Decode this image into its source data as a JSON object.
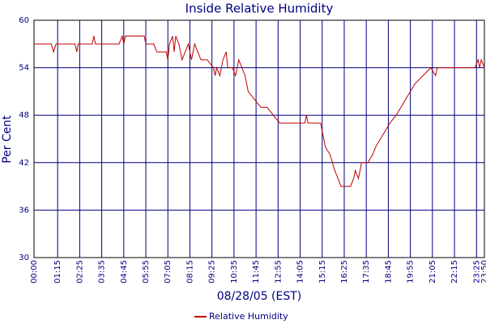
{
  "chart_data": {
    "type": "line",
    "title": "Inside Relative Humidity",
    "x_label": "08/28/05 (EST)",
    "y_label": "Per Cent",
    "xlim": [
      0,
      1430
    ],
    "ylim": [
      30,
      60
    ],
    "xticks": [
      {
        "value": 0,
        "label": "00:00"
      },
      {
        "value": 75,
        "label": "01:15"
      },
      {
        "value": 145,
        "label": "02:25"
      },
      {
        "value": 215,
        "label": "03:35"
      },
      {
        "value": 285,
        "label": "04:45"
      },
      {
        "value": 355,
        "label": "05:55"
      },
      {
        "value": 425,
        "label": "07:05"
      },
      {
        "value": 495,
        "label": "08:15"
      },
      {
        "value": 565,
        "label": "09:25"
      },
      {
        "value": 635,
        "label": "10:35"
      },
      {
        "value": 705,
        "label": "11:45"
      },
      {
        "value": 775,
        "label": "12:55"
      },
      {
        "value": 845,
        "label": "14:05"
      },
      {
        "value": 915,
        "label": "15:15"
      },
      {
        "value": 985,
        "label": "16:25"
      },
      {
        "value": 1055,
        "label": "17:35"
      },
      {
        "value": 1125,
        "label": "18:45"
      },
      {
        "value": 1195,
        "label": "19:55"
      },
      {
        "value": 1265,
        "label": "21:05"
      },
      {
        "value": 1335,
        "label": "22:15"
      },
      {
        "value": 1405,
        "label": "23:25"
      },
      {
        "value": 1430,
        "label": "23:50"
      }
    ],
    "yticks": [
      30,
      36,
      42,
      48,
      54,
      60
    ],
    "grid": true,
    "x": [
      0,
      40,
      55,
      62,
      70,
      130,
      136,
      140,
      185,
      190,
      195,
      270,
      280,
      285,
      290,
      300,
      350,
      355,
      380,
      390,
      420,
      425,
      430,
      440,
      445,
      450,
      460,
      470,
      480,
      490,
      500,
      510,
      520,
      530,
      550,
      570,
      575,
      580,
      590,
      600,
      610,
      615,
      630,
      640,
      650,
      660,
      670,
      680,
      700,
      720,
      740,
      760,
      780,
      820,
      860,
      865,
      870,
      910,
      915,
      925,
      940,
      955,
      965,
      975,
      1005,
      1015,
      1020,
      1030,
      1040,
      1060,
      1075,
      1085,
      1100,
      1115,
      1130,
      1150,
      1165,
      1180,
      1195,
      1210,
      1235,
      1260,
      1275,
      1280,
      1320,
      1360,
      1400,
      1410,
      1415,
      1420,
      1430
    ],
    "series": [
      {
        "name": "Relative Humidity",
        "color": "#c00000",
        "values": [
          57,
          57,
          57,
          56,
          57,
          57,
          56,
          57,
          57,
          58,
          57,
          57,
          58,
          57,
          58,
          58,
          58,
          57,
          57,
          56,
          56,
          55,
          57,
          58,
          56,
          58,
          57,
          55,
          56,
          57,
          55,
          57,
          56,
          55,
          55,
          54,
          53,
          54,
          53,
          55,
          56,
          54,
          54,
          53,
          55,
          54,
          53,
          51,
          50,
          49,
          49,
          48,
          47,
          47,
          47,
          48,
          47,
          47,
          46,
          44,
          43,
          41,
          40,
          39,
          39,
          40,
          41,
          40,
          42,
          42,
          43,
          44,
          45,
          46,
          47,
          48,
          49,
          50,
          51,
          52,
          53,
          54,
          53,
          54,
          54,
          54,
          54,
          55,
          54,
          55,
          54
        ]
      }
    ]
  }
}
